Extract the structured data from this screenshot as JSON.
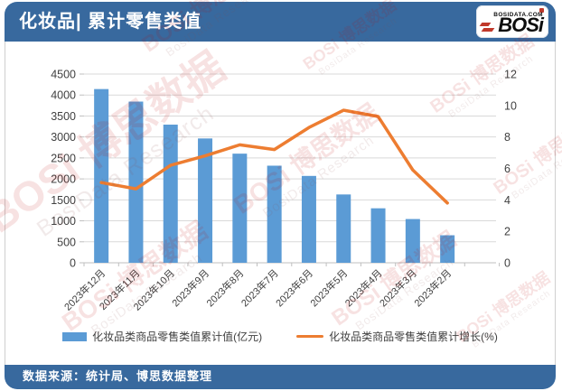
{
  "header": {
    "title": "化妆品| 累计零售类值",
    "logo": {
      "name": "BOSi",
      "domain": "BOSIDATA.COM"
    }
  },
  "footer": {
    "source": "数据来源：统计局、博思数据整理"
  },
  "watermark": {
    "brand": "BOSi",
    "brand_cn": "博思数据",
    "research": "BosiData Research"
  },
  "colors": {
    "band_blue": "#38699E",
    "bar_blue": "#5B9BD5",
    "line_orange": "#ED7D31",
    "grid": "#D9D9D9",
    "axis_line": "#BFBFBF",
    "axis_text": "#404040",
    "watermark_red": "#C00000"
  },
  "chart_data": {
    "type": "bar",
    "subtype": "bar-line-combo-dual-axis",
    "title": "化妆品| 累计零售类值",
    "categories": [
      "2023年12月",
      "2023年11月",
      "2023年10月",
      "2023年9月",
      "2023年8月",
      "2023年7月",
      "2023年6月",
      "2023年5月",
      "2023年4月",
      "2023年3月",
      "2023年2月"
    ],
    "series": [
      {
        "name": "化妆品类商品零售类值累计值(亿元)",
        "type": "bar",
        "axis": "left",
        "values": [
          4142,
          3843,
          3294,
          2964,
          2602,
          2315,
          2071,
          1629,
          1299,
          1043,
          656
        ]
      },
      {
        "name": "化妆品类商品零售类值累计增长(%)",
        "type": "line",
        "axis": "right",
        "values": [
          5.1,
          4.7,
          6.2,
          6.8,
          7.5,
          7.2,
          8.6,
          9.7,
          9.3,
          5.9,
          3.8
        ]
      }
    ],
    "left_axis": {
      "min": 0,
      "max": 4500,
      "step": 500
    },
    "right_axis": {
      "min": 0,
      "max": 12,
      "step": 2
    },
    "grid": true,
    "legend_position": "bottom",
    "xlabel": "",
    "ylabel_left": "亿元",
    "ylabel_right": "%"
  }
}
